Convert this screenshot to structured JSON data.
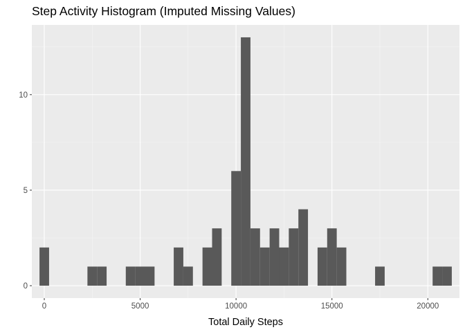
{
  "chart_data": {
    "type": "bar",
    "title": "Step Activity Histogram (Imputed Missing Values)",
    "xlabel": "Total Daily Steps",
    "ylabel": "",
    "bin_width": 500,
    "bins": [
      {
        "start": -250,
        "end": 250,
        "count": 2
      },
      {
        "start": 2250,
        "end": 2750,
        "count": 1
      },
      {
        "start": 2750,
        "end": 3250,
        "count": 1
      },
      {
        "start": 4250,
        "end": 4750,
        "count": 1
      },
      {
        "start": 4750,
        "end": 5250,
        "count": 1
      },
      {
        "start": 5250,
        "end": 5750,
        "count": 1
      },
      {
        "start": 6750,
        "end": 7250,
        "count": 2
      },
      {
        "start": 7250,
        "end": 7750,
        "count": 1
      },
      {
        "start": 8250,
        "end": 8750,
        "count": 2
      },
      {
        "start": 8750,
        "end": 9250,
        "count": 3
      },
      {
        "start": 9750,
        "end": 10250,
        "count": 6
      },
      {
        "start": 10250,
        "end": 10750,
        "count": 13
      },
      {
        "start": 10750,
        "end": 11250,
        "count": 3
      },
      {
        "start": 11250,
        "end": 11750,
        "count": 2
      },
      {
        "start": 11750,
        "end": 12250,
        "count": 3
      },
      {
        "start": 12250,
        "end": 12750,
        "count": 2
      },
      {
        "start": 12750,
        "end": 13250,
        "count": 3
      },
      {
        "start": 13250,
        "end": 13750,
        "count": 4
      },
      {
        "start": 14250,
        "end": 14750,
        "count": 2
      },
      {
        "start": 14750,
        "end": 15250,
        "count": 3
      },
      {
        "start": 15250,
        "end": 15750,
        "count": 2
      },
      {
        "start": 17250,
        "end": 17750,
        "count": 1
      },
      {
        "start": 20250,
        "end": 20750,
        "count": 1
      },
      {
        "start": 20750,
        "end": 21250,
        "count": 1
      }
    ],
    "xlim": [
      -650,
      21650
    ],
    "ylim": [
      -0.65,
      13.65
    ],
    "x_ticks": [
      0,
      5000,
      10000,
      15000,
      20000
    ],
    "y_ticks": [
      0,
      5,
      10
    ],
    "grid": true,
    "colors": {
      "bar": "#595959",
      "panel": "#ebebeb",
      "grid_major": "#ffffff",
      "grid_minor": "#f5f5f5"
    }
  }
}
